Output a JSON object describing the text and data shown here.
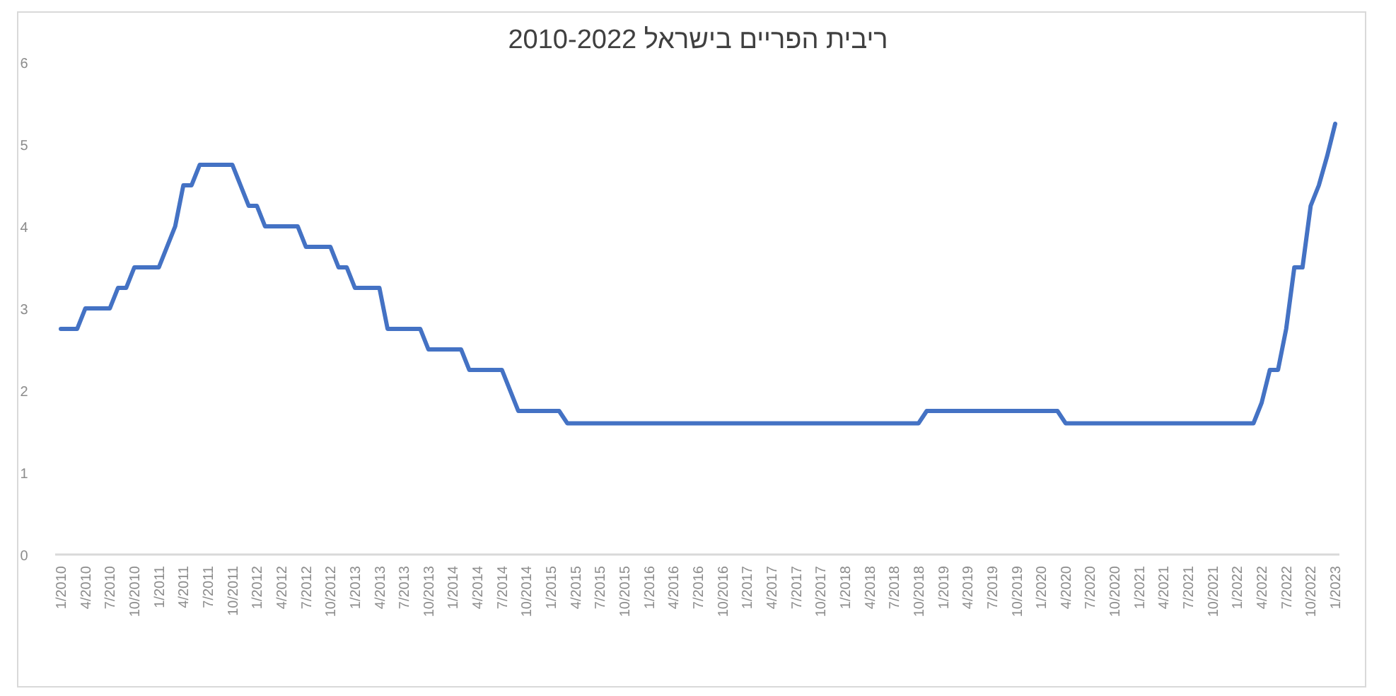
{
  "chart_data": {
    "type": "line",
    "title": "ריבית הפריים בישראל 2010-2022",
    "categories": [
      "1/2010",
      null,
      null,
      "4/2010",
      null,
      null,
      "7/2010",
      null,
      null,
      "10/2010",
      null,
      null,
      "1/2011",
      null,
      null,
      "4/2011",
      null,
      null,
      "7/2011",
      null,
      null,
      "10/2011",
      null,
      null,
      "1/2012",
      null,
      null,
      "4/2012",
      null,
      null,
      "7/2012",
      null,
      null,
      "10/2012",
      null,
      null,
      "1/2013",
      null,
      null,
      "4/2013",
      null,
      null,
      "7/2013",
      null,
      null,
      "10/2013",
      null,
      null,
      "1/2014",
      null,
      null,
      "4/2014",
      null,
      null,
      "7/2014",
      null,
      null,
      "10/2014",
      null,
      null,
      "1/2015",
      null,
      null,
      "4/2015",
      null,
      null,
      "7/2015",
      null,
      null,
      "10/2015",
      null,
      null,
      "1/2016",
      null,
      null,
      "4/2016",
      null,
      null,
      "7/2016",
      null,
      null,
      "10/2016",
      null,
      null,
      "1/2017",
      null,
      null,
      "4/2017",
      null,
      null,
      "7/2017",
      null,
      null,
      "10/2017",
      null,
      null,
      "1/2018",
      null,
      null,
      "4/2018",
      null,
      null,
      "7/2018",
      null,
      null,
      "10/2018",
      null,
      null,
      "1/2019",
      null,
      null,
      "4/2019",
      null,
      null,
      "7/2019",
      null,
      null,
      "10/2019",
      null,
      null,
      "1/2020",
      null,
      null,
      "4/2020",
      null,
      null,
      "7/2020",
      null,
      null,
      "10/2020",
      null,
      null,
      "1/2021",
      null,
      null,
      "4/2021",
      null,
      null,
      "7/2021",
      null,
      null,
      "10/2021",
      null,
      null,
      "1/2022",
      null,
      null,
      "4/2022",
      null,
      null,
      "7/2022",
      null,
      null,
      "10/2022",
      null,
      null,
      "1/2023"
    ],
    "values": [
      2.75,
      2.75,
      2.75,
      3.0,
      3.0,
      3.0,
      3.0,
      3.25,
      3.25,
      3.5,
      3.5,
      3.5,
      3.5,
      3.75,
      4.0,
      4.5,
      4.5,
      4.75,
      4.75,
      4.75,
      4.75,
      4.75,
      4.5,
      4.25,
      4.25,
      4.0,
      4.0,
      4.0,
      4.0,
      4.0,
      3.75,
      3.75,
      3.75,
      3.75,
      3.5,
      3.5,
      3.25,
      3.25,
      3.25,
      3.25,
      2.75,
      2.75,
      2.75,
      2.75,
      2.75,
      2.5,
      2.5,
      2.5,
      2.5,
      2.5,
      2.25,
      2.25,
      2.25,
      2.25,
      2.25,
      2.0,
      1.75,
      1.75,
      1.75,
      1.75,
      1.75,
      1.75,
      1.6,
      1.6,
      1.6,
      1.6,
      1.6,
      1.6,
      1.6,
      1.6,
      1.6,
      1.6,
      1.6,
      1.6,
      1.6,
      1.6,
      1.6,
      1.6,
      1.6,
      1.6,
      1.6,
      1.6,
      1.6,
      1.6,
      1.6,
      1.6,
      1.6,
      1.6,
      1.6,
      1.6,
      1.6,
      1.6,
      1.6,
      1.6,
      1.6,
      1.6,
      1.6,
      1.6,
      1.6,
      1.6,
      1.6,
      1.6,
      1.6,
      1.6,
      1.6,
      1.6,
      1.75,
      1.75,
      1.75,
      1.75,
      1.75,
      1.75,
      1.75,
      1.75,
      1.75,
      1.75,
      1.75,
      1.75,
      1.75,
      1.75,
      1.75,
      1.75,
      1.75,
      1.6,
      1.6,
      1.6,
      1.6,
      1.6,
      1.6,
      1.6,
      1.6,
      1.6,
      1.6,
      1.6,
      1.6,
      1.6,
      1.6,
      1.6,
      1.6,
      1.6,
      1.6,
      1.6,
      1.6,
      1.6,
      1.6,
      1.6,
      1.6,
      1.85,
      2.25,
      2.25,
      2.75,
      3.5,
      3.5,
      4.25,
      4.5,
      4.85,
      5.25
    ],
    "color": "#4472c4",
    "ylim": [
      0,
      6
    ],
    "yticks": [
      0,
      1,
      2,
      3,
      4,
      5,
      6
    ],
    "grid": false,
    "line_style": "solid"
  }
}
